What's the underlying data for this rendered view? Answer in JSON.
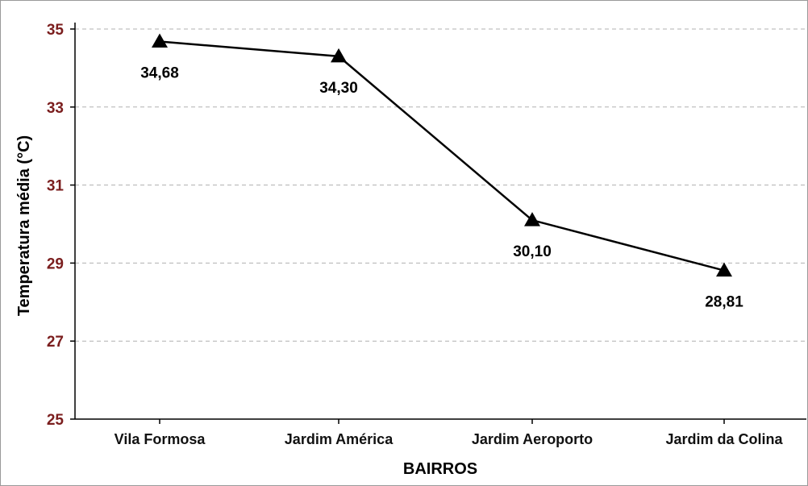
{
  "chart_data": {
    "type": "line",
    "categories": [
      "Vila Formosa",
      "Jardim América",
      "Jardim Aeroporto",
      "Jardim da Colina"
    ],
    "values": [
      34.68,
      34.3,
      30.1,
      28.81
    ],
    "data_labels": [
      "34,68",
      "34,30",
      "30,10",
      "28,81"
    ],
    "xlabel": "BAIRROS",
    "ylabel": "Temperatura média (°C)",
    "ylim": [
      25,
      35
    ],
    "yticks": [
      25,
      27,
      29,
      31,
      33,
      35
    ],
    "ytick_labels": [
      "25",
      "27",
      "29",
      "31",
      "33",
      "35"
    ],
    "grid": "horizontal dashed",
    "marker": "triangle",
    "line_color": "#000000",
    "tick_label_color": "#7b1e1e",
    "grid_color": "#b0b0b0"
  }
}
